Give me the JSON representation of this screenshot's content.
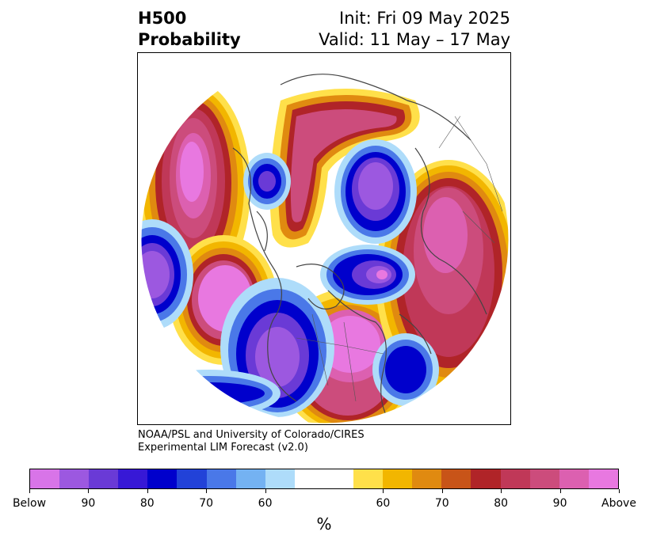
{
  "title": {
    "left_line1": "H500",
    "left_line2": "Probability",
    "right_line1": "Init: Fri 09 May 2025",
    "right_line2": "Valid: 11 May – 17 May"
  },
  "credit": {
    "line1": "NOAA/PSL and University of Colorado/CIRES",
    "line2": "Experimental LIM Forecast (v2.0)"
  },
  "colorbar": {
    "unit": "%",
    "colors": [
      "#d874e8",
      "#9c58e0",
      "#6a3ad6",
      "#3718d6",
      "#0000cc",
      "#2242d8",
      "#4a78e8",
      "#74b2f2",
      "#aedcfa",
      "#ffffff",
      "#ffe04a",
      "#f2b600",
      "#e08a10",
      "#c85418",
      "#b02428",
      "#c03858",
      "#cc4c7c",
      "#dc60b0",
      "#e878e0"
    ],
    "tick_labels": [
      "Below",
      "90",
      "80",
      "70",
      "60",
      "60",
      "70",
      "80",
      "90",
      "Above"
    ]
  }
}
